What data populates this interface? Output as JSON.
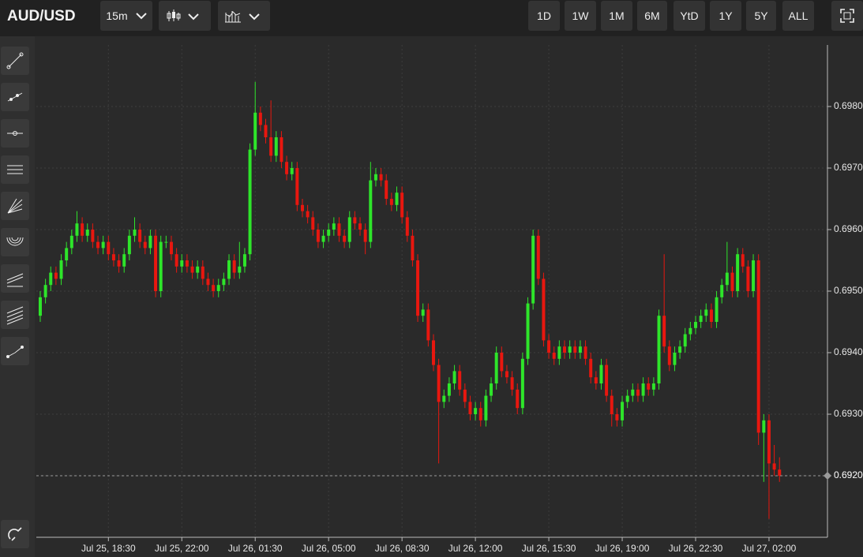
{
  "header": {
    "symbol": "AUD/USD",
    "interval": "15m",
    "ranges": [
      "1D",
      "1W",
      "1M",
      "6M",
      "YtD",
      "1Y",
      "5Y",
      "ALL"
    ]
  },
  "chart_data": {
    "type": "candlestick",
    "up_color": "#2ee52a",
    "down_color": "#e8170f",
    "grid": true,
    "xlim": [
      -0.75,
      150.15
    ],
    "ylim": [
      0.691,
      0.699
    ],
    "xticks": [
      {
        "value": 13,
        "label": "Jul 25, 18:30"
      },
      {
        "value": 27,
        "label": "Jul 25, 22:00"
      },
      {
        "value": 41,
        "label": "Jul 26, 01:30"
      },
      {
        "value": 55,
        "label": "Jul 26, 05:00"
      },
      {
        "value": 69,
        "label": "Jul 26, 08:30"
      },
      {
        "value": 83,
        "label": "Jul 26, 12:00"
      },
      {
        "value": 97,
        "label": "Jul 26, 15:30"
      },
      {
        "value": 111,
        "label": "Jul 26, 19:00"
      },
      {
        "value": 125,
        "label": "Jul 26, 22:30"
      },
      {
        "value": 139,
        "label": "Jul 27, 02:00"
      }
    ],
    "yticks": [
      {
        "value": 0.692,
        "label": "0.6920"
      },
      {
        "value": 0.693,
        "label": "0.6930"
      },
      {
        "value": 0.694,
        "label": "0.6940"
      },
      {
        "value": 0.695,
        "label": "0.6950"
      },
      {
        "value": 0.696,
        "label": "0.6960"
      },
      {
        "value": 0.697,
        "label": "0.6970"
      },
      {
        "value": 0.698,
        "label": "0.6980"
      }
    ],
    "last_price": {
      "value": 0.692,
      "label": "0.6920"
    },
    "open": [
      0.6946,
      0.6949,
      0.6951,
      0.6953,
      0.6952,
      0.6955,
      0.6957,
      0.6959,
      0.6961,
      0.6959,
      0.696,
      0.6958,
      0.6957,
      0.6958,
      0.6956,
      0.6955,
      0.6954,
      0.6956,
      0.6959,
      0.696,
      0.6958,
      0.6957,
      0.6959,
      0.695,
      0.6958,
      0.6958,
      0.6956,
      0.6954,
      0.6955,
      0.6954,
      0.6953,
      0.6954,
      0.6952,
      0.6951,
      0.695,
      0.6951,
      0.6952,
      0.6955,
      0.6953,
      0.6954,
      0.6956,
      0.6973,
      0.6979,
      0.6977,
      0.6975,
      0.6972,
      0.6975,
      0.6971,
      0.6969,
      0.697,
      0.6964,
      0.6963,
      0.6962,
      0.696,
      0.6958,
      0.6959,
      0.696,
      0.6961,
      0.6959,
      0.6958,
      0.6962,
      0.6961,
      0.696,
      0.6958,
      0.6968,
      0.6969,
      0.6968,
      0.6965,
      0.6964,
      0.6966,
      0.6962,
      0.6959,
      0.6955,
      0.6946,
      0.6947,
      0.6942,
      0.6938,
      0.6932,
      0.6933,
      0.6935,
      0.6937,
      0.6934,
      0.6932,
      0.693,
      0.6931,
      0.6929,
      0.6933,
      0.6935,
      0.694,
      0.6937,
      0.6936,
      0.6934,
      0.6931,
      0.6939,
      0.6948,
      0.6959,
      0.6952,
      0.6942,
      0.694,
      0.6939,
      0.6941,
      0.694,
      0.6941,
      0.694,
      0.6941,
      0.6939,
      0.6936,
      0.6935,
      0.6938,
      0.6933,
      0.693,
      0.6929,
      0.6932,
      0.6933,
      0.6934,
      0.6933,
      0.6935,
      0.6934,
      0.6935,
      0.6946,
      0.6941,
      0.6938,
      0.694,
      0.6941,
      0.6943,
      0.6944,
      0.6945,
      0.6946,
      0.6947,
      0.6945,
      0.6949,
      0.6951,
      0.6953,
      0.695,
      0.6956,
      0.6954,
      0.695,
      0.6955,
      0.6927,
      0.6929,
      0.6922,
      0.6921
    ],
    "high": [
      0.695,
      0.6952,
      0.6954,
      0.6954,
      0.6956,
      0.6958,
      0.696,
      0.6963,
      0.6962,
      0.6961,
      0.6961,
      0.6959,
      0.6959,
      0.6959,
      0.6957,
      0.6956,
      0.6957,
      0.696,
      0.6962,
      0.6961,
      0.6959,
      0.696,
      0.696,
      0.6959,
      0.6959,
      0.6959,
      0.6957,
      0.6956,
      0.6956,
      0.6955,
      0.6955,
      0.6955,
      0.6953,
      0.6952,
      0.6952,
      0.6953,
      0.6956,
      0.6956,
      0.6958,
      0.6957,
      0.6974,
      0.6984,
      0.698,
      0.6978,
      0.6981,
      0.6976,
      0.6976,
      0.6972,
      0.6971,
      0.6971,
      0.6965,
      0.6964,
      0.6963,
      0.6961,
      0.696,
      0.6961,
      0.6962,
      0.6962,
      0.696,
      0.6963,
      0.6963,
      0.6962,
      0.6961,
      0.6971,
      0.697,
      0.697,
      0.6969,
      0.6966,
      0.6967,
      0.6967,
      0.6963,
      0.696,
      0.6956,
      0.6948,
      0.6948,
      0.6943,
      0.6939,
      0.6934,
      0.6936,
      0.6938,
      0.6938,
      0.6935,
      0.6933,
      0.6932,
      0.6932,
      0.6934,
      0.6936,
      0.6941,
      0.6941,
      0.6938,
      0.6937,
      0.6935,
      0.694,
      0.6949,
      0.696,
      0.696,
      0.6953,
      0.6943,
      0.6941,
      0.6942,
      0.6942,
      0.6942,
      0.6942,
      0.6942,
      0.6942,
      0.694,
      0.6937,
      0.6939,
      0.6939,
      0.6934,
      0.6931,
      0.6933,
      0.6934,
      0.6935,
      0.6935,
      0.6936,
      0.6936,
      0.6936,
      0.6947,
      0.6956,
      0.6942,
      0.6941,
      0.6942,
      0.6944,
      0.6945,
      0.6946,
      0.6947,
      0.6948,
      0.6948,
      0.695,
      0.6952,
      0.6958,
      0.6954,
      0.6957,
      0.6957,
      0.6955,
      0.6956,
      0.6956,
      0.693,
      0.693,
      0.6925,
      0.6923
    ],
    "low": [
      0.6945,
      0.6948,
      0.695,
      0.6951,
      0.6951,
      0.6954,
      0.6956,
      0.6958,
      0.6958,
      0.6958,
      0.6957,
      0.6956,
      0.6956,
      0.6955,
      0.6954,
      0.6953,
      0.6953,
      0.6955,
      0.6958,
      0.6957,
      0.6956,
      0.6956,
      0.6949,
      0.6949,
      0.6957,
      0.6955,
      0.6953,
      0.6953,
      0.6953,
      0.6952,
      0.6952,
      0.6951,
      0.695,
      0.6949,
      0.6949,
      0.695,
      0.6951,
      0.6952,
      0.6952,
      0.6953,
      0.6955,
      0.6972,
      0.6976,
      0.6974,
      0.6971,
      0.6971,
      0.697,
      0.6968,
      0.6968,
      0.6963,
      0.6962,
      0.6961,
      0.6959,
      0.6957,
      0.6957,
      0.6958,
      0.6959,
      0.6958,
      0.6957,
      0.6957,
      0.696,
      0.6959,
      0.6956,
      0.6957,
      0.6967,
      0.6967,
      0.6964,
      0.6963,
      0.6963,
      0.6961,
      0.6958,
      0.6954,
      0.6945,
      0.6945,
      0.6941,
      0.6937,
      0.6922,
      0.6931,
      0.6932,
      0.6934,
      0.6933,
      0.6931,
      0.6929,
      0.6929,
      0.6928,
      0.6928,
      0.6932,
      0.6934,
      0.6936,
      0.6935,
      0.6933,
      0.693,
      0.693,
      0.6938,
      0.6947,
      0.6951,
      0.6941,
      0.6939,
      0.6938,
      0.6938,
      0.6939,
      0.6939,
      0.6939,
      0.6939,
      0.6938,
      0.6935,
      0.6934,
      0.6934,
      0.6932,
      0.6928,
      0.6928,
      0.6928,
      0.6931,
      0.6932,
      0.6932,
      0.6932,
      0.6933,
      0.6933,
      0.6934,
      0.694,
      0.6937,
      0.6937,
      0.6939,
      0.694,
      0.6942,
      0.6943,
      0.6944,
      0.6945,
      0.6944,
      0.6944,
      0.6948,
      0.695,
      0.6949,
      0.6949,
      0.6953,
      0.6949,
      0.6949,
      0.6925,
      0.6919,
      0.6913,
      0.692,
      0.6919
    ],
    "close": [
      0.6949,
      0.6951,
      0.6953,
      0.6952,
      0.6955,
      0.6957,
      0.6959,
      0.6961,
      0.6959,
      0.696,
      0.6958,
      0.6957,
      0.6958,
      0.6956,
      0.6955,
      0.6954,
      0.6956,
      0.6959,
      0.696,
      0.6958,
      0.6957,
      0.6959,
      0.695,
      0.6958,
      0.6958,
      0.6956,
      0.6954,
      0.6955,
      0.6954,
      0.6953,
      0.6954,
      0.6952,
      0.6951,
      0.695,
      0.6951,
      0.6952,
      0.6955,
      0.6953,
      0.6954,
      0.6956,
      0.6973,
      0.6979,
      0.6977,
      0.6975,
      0.6972,
      0.6975,
      0.6971,
      0.6969,
      0.697,
      0.6964,
      0.6963,
      0.6962,
      0.696,
      0.6958,
      0.6959,
      0.696,
      0.6961,
      0.6959,
      0.6958,
      0.6962,
      0.6961,
      0.696,
      0.6958,
      0.6968,
      0.6969,
      0.6968,
      0.6965,
      0.6964,
      0.6966,
      0.6962,
      0.6959,
      0.6955,
      0.6946,
      0.6947,
      0.6942,
      0.6938,
      0.6932,
      0.6933,
      0.6935,
      0.6937,
      0.6934,
      0.6932,
      0.693,
      0.6931,
      0.6929,
      0.6933,
      0.6935,
      0.694,
      0.6937,
      0.6936,
      0.6934,
      0.6931,
      0.6939,
      0.6948,
      0.6959,
      0.6952,
      0.6942,
      0.694,
      0.6939,
      0.6941,
      0.694,
      0.6941,
      0.694,
      0.6941,
      0.6939,
      0.6936,
      0.6935,
      0.6938,
      0.6933,
      0.693,
      0.6929,
      0.6932,
      0.6933,
      0.6934,
      0.6933,
      0.6935,
      0.6934,
      0.6935,
      0.6946,
      0.6941,
      0.6938,
      0.694,
      0.6941,
      0.6943,
      0.6944,
      0.6945,
      0.6946,
      0.6947,
      0.6945,
      0.6949,
      0.6951,
      0.6953,
      0.695,
      0.6956,
      0.6954,
      0.695,
      0.6955,
      0.6927,
      0.6929,
      0.6922,
      0.6921,
      0.692
    ]
  }
}
